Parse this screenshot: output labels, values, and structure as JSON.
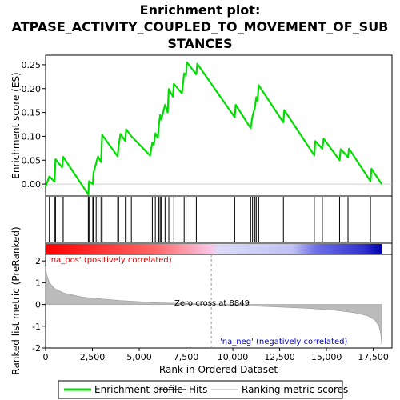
{
  "chart_data": {
    "type": "line",
    "title_lines": [
      "Enrichment plot:",
      "ATPASE_ACTIVITY_COUPLED_TO_MOVEMENT_OF_SUB",
      "STANCES"
    ],
    "top_panel": {
      "ylabel": "Enrichment score (ES)",
      "ylim": [
        -0.025,
        0.27
      ],
      "yticks": [
        0.0,
        0.05,
        0.1,
        0.15,
        0.2,
        0.25
      ],
      "ytick_labels": [
        "0.00",
        "0.05",
        "0.10",
        "0.15",
        "0.20",
        "0.25"
      ],
      "series": [
        {
          "name": "Enrichment profile",
          "color": "#00dd00",
          "x": [
            0,
            200,
            480,
            530,
            880,
            940,
            2280,
            2320,
            2520,
            2560,
            2700,
            2800,
            2960,
            3020,
            3850,
            3900,
            4000,
            4260,
            4300,
            4580,
            5580,
            5700,
            5780,
            5860,
            6000,
            6050,
            6120,
            6180,
            6380,
            6520,
            6580,
            6800,
            6850,
            7280,
            7400,
            7500,
            7550,
            8050,
            8100,
            10100,
            10150,
            10950,
            11050,
            11180,
            11250,
            11320,
            11380,
            12700,
            12750,
            14350,
            14400,
            14780,
            14850,
            15700,
            15760,
            16150,
            16200,
            17350,
            17400,
            17950
          ],
          "y": [
            -0.005,
            0.016,
            0.005,
            0.052,
            0.035,
            0.057,
            -0.022,
            0.006,
            0.0,
            0.024,
            0.044,
            0.058,
            0.046,
            0.103,
            0.058,
            0.08,
            0.105,
            0.09,
            0.115,
            0.1,
            0.06,
            0.087,
            0.082,
            0.106,
            0.097,
            0.124,
            0.145,
            0.135,
            0.166,
            0.15,
            0.199,
            0.183,
            0.21,
            0.19,
            0.232,
            0.228,
            0.255,
            0.23,
            0.252,
            0.14,
            0.166,
            0.117,
            0.142,
            0.161,
            0.182,
            0.174,
            0.207,
            0.129,
            0.155,
            0.06,
            0.09,
            0.074,
            0.095,
            0.05,
            0.073,
            0.056,
            0.074,
            0.006,
            0.032,
            0.0
          ]
        }
      ]
    },
    "hits": [
      200,
      480,
      530,
      880,
      940,
      2280,
      2320,
      2520,
      2560,
      2700,
      2800,
      2960,
      3020,
      3850,
      3900,
      4260,
      4300,
      4580,
      5700,
      5860,
      6050,
      6120,
      6180,
      6380,
      6580,
      6850,
      7400,
      7500,
      8050,
      10100,
      10950,
      11050,
      11180,
      11250,
      11380,
      12700,
      14350,
      14780,
      15700,
      16150,
      17350
    ],
    "bottom_panel": {
      "ylabel": "Ranked list metric (PreRanked)",
      "xlabel": "Rank in Ordered Dataset",
      "ylim": [
        -2.0,
        2.3
      ],
      "yticks": [
        -2,
        -1,
        0,
        1,
        2
      ],
      "ytick_labels": [
        "-2",
        "-1",
        "0",
        "1",
        "2"
      ],
      "metric_curve": {
        "x": [
          0,
          50,
          200,
          500,
          1000,
          2000,
          4000,
          6000,
          8000,
          8849,
          10000,
          12000,
          14000,
          15500,
          16500,
          17200,
          17600,
          17800,
          17900,
          17950
        ],
        "y": [
          1.75,
          1.4,
          1.0,
          0.72,
          0.52,
          0.33,
          0.18,
          0.08,
          0.03,
          0.0,
          -0.04,
          -0.1,
          -0.18,
          -0.27,
          -0.38,
          -0.52,
          -0.72,
          -1.0,
          -1.35,
          -1.85
        ]
      },
      "zero_cross_rank": 8849,
      "zero_cross_label": "Zero cross at 8849",
      "pos_label": "'na_pos' (positively correlated)",
      "neg_label": "'na_neg' (negatively correlated)",
      "pos_color": "#dd0000",
      "neg_color": "#0000cc",
      "fill_color": "#bbbbbb"
    },
    "xlim": [
      0,
      18500
    ],
    "xticks": [
      0,
      2500,
      5000,
      7500,
      10000,
      12500,
      15000,
      17500
    ],
    "xtick_labels": [
      "0",
      "2,500",
      "5,000",
      "7,500",
      "10,000",
      "12,500",
      "15,000",
      "17,500"
    ],
    "gradient_stops": [
      {
        "rank": 0,
        "color": "#ff0000"
      },
      {
        "rank": 5800,
        "color": "#ff6666"
      },
      {
        "rank": 8849,
        "color": "#f8c8e8"
      },
      {
        "rank": 9200,
        "color": "#dcdcf8"
      },
      {
        "rank": 13200,
        "color": "#c0c0f4"
      },
      {
        "rank": 14400,
        "color": "#7070e8"
      },
      {
        "rank": 17000,
        "color": "#3030d0"
      },
      {
        "rank": 17950,
        "color": "#0000b0"
      }
    ],
    "legend": [
      {
        "label": "Enrichment profile",
        "color": "#00dd00",
        "kind": "thick-line"
      },
      {
        "label": "Hits",
        "color": "#000000",
        "kind": "line"
      },
      {
        "label": "Ranking metric scores",
        "color": "#bbbbbb",
        "kind": "line"
      }
    ]
  }
}
